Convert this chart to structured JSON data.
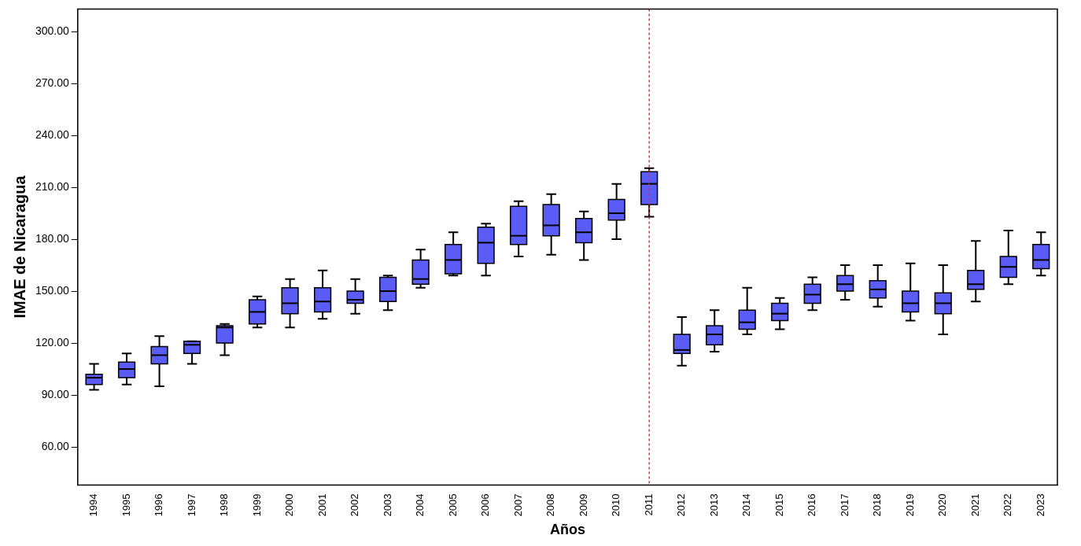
{
  "chart_data": {
    "type": "box",
    "xlabel": "Años",
    "ylabel": "IMAE de Nicaragua",
    "categories": [
      "1994",
      "1995",
      "1996",
      "1997",
      "1998",
      "1999",
      "2000",
      "2001",
      "2002",
      "2003",
      "2004",
      "2005",
      "2006",
      "2007",
      "2008",
      "2009",
      "2010",
      "2011",
      "2012",
      "2013",
      "2014",
      "2015",
      "2016",
      "2017",
      "2018",
      "2019",
      "2020",
      "2021",
      "2022",
      "2023"
    ],
    "series": [
      {
        "color": "#5b5bf5",
        "boxes": [
          {
            "low": 93,
            "q1": 96,
            "median": 100,
            "q3": 102,
            "high": 108
          },
          {
            "low": 96,
            "q1": 100,
            "median": 105,
            "q3": 109,
            "high": 114
          },
          {
            "low": 95,
            "q1": 108,
            "median": 113,
            "q3": 118,
            "high": 124
          },
          {
            "low": 108,
            "q1": 114,
            "median": 119,
            "q3": 121,
            "high": 121
          },
          {
            "low": 113,
            "q1": 120,
            "median": 129,
            "q3": 130,
            "high": 131
          },
          {
            "low": 129,
            "q1": 131,
            "median": 138,
            "q3": 145,
            "high": 147
          },
          {
            "low": 129,
            "q1": 137,
            "median": 143,
            "q3": 152,
            "high": 157
          },
          {
            "low": 134,
            "q1": 138,
            "median": 144,
            "q3": 152,
            "high": 162
          },
          {
            "low": 137,
            "q1": 143,
            "median": 145,
            "q3": 150,
            "high": 157
          },
          {
            "low": 139,
            "q1": 144,
            "median": 150,
            "q3": 158,
            "high": 159
          },
          {
            "low": 152,
            "q1": 154,
            "median": 157,
            "q3": 168,
            "high": 174
          },
          {
            "low": 159,
            "q1": 160,
            "median": 168,
            "q3": 177,
            "high": 184
          },
          {
            "low": 159,
            "q1": 166,
            "median": 178,
            "q3": 187,
            "high": 189
          },
          {
            "low": 170,
            "q1": 177,
            "median": 182,
            "q3": 199,
            "high": 202
          },
          {
            "low": 171,
            "q1": 182,
            "median": 188,
            "q3": 200,
            "high": 206
          },
          {
            "low": 168,
            "q1": 178,
            "median": 184,
            "q3": 192,
            "high": 196
          },
          {
            "low": 180,
            "q1": 191,
            "median": 195,
            "q3": 203,
            "high": 212
          },
          {
            "low": 193,
            "q1": 200,
            "median": 212,
            "q3": 219,
            "high": 221
          },
          {
            "low": 107,
            "q1": 114,
            "median": 116,
            "q3": 125,
            "high": 135
          },
          {
            "low": 115,
            "q1": 119,
            "median": 125,
            "q3": 130,
            "high": 139
          },
          {
            "low": 125,
            "q1": 128,
            "median": 132,
            "q3": 139,
            "high": 152
          },
          {
            "low": 128,
            "q1": 133,
            "median": 137,
            "q3": 143,
            "high": 146
          },
          {
            "low": 139,
            "q1": 143,
            "median": 148,
            "q3": 154,
            "high": 158
          },
          {
            "low": 145,
            "q1": 150,
            "median": 154,
            "q3": 159,
            "high": 165
          },
          {
            "low": 141,
            "q1": 146,
            "median": 151,
            "q3": 156,
            "high": 165
          },
          {
            "low": 133,
            "q1": 138,
            "median": 143,
            "q3": 150,
            "high": 166
          },
          {
            "low": 125,
            "q1": 137,
            "median": 143,
            "q3": 149,
            "high": 165
          },
          {
            "low": 144,
            "q1": 151,
            "median": 154,
            "q3": 162,
            "high": 179
          },
          {
            "low": 154,
            "q1": 158,
            "median": 164,
            "q3": 170,
            "high": 185
          },
          {
            "low": 159,
            "q1": 163,
            "median": 168,
            "q3": 177,
            "high": 184
          }
        ]
      }
    ],
    "ylim": [
      38,
      313
    ],
    "yticks": [
      {
        "value": 60,
        "label": "60.00"
      },
      {
        "value": 90,
        "label": "90.00"
      },
      {
        "value": 120,
        "label": "120.00"
      },
      {
        "value": 150,
        "label": "150.00"
      },
      {
        "value": 180,
        "label": "180.00"
      },
      {
        "value": 210,
        "label": "210.00"
      },
      {
        "value": 240,
        "label": "240.00"
      },
      {
        "value": 270,
        "label": "270.00"
      },
      {
        "value": 300,
        "label": "300.00"
      }
    ],
    "ref_lines": [
      {
        "axis": "x",
        "value": "2011",
        "color": "#e8302a",
        "line_style": "dotted"
      }
    ],
    "grid": false,
    "legend": false
  }
}
